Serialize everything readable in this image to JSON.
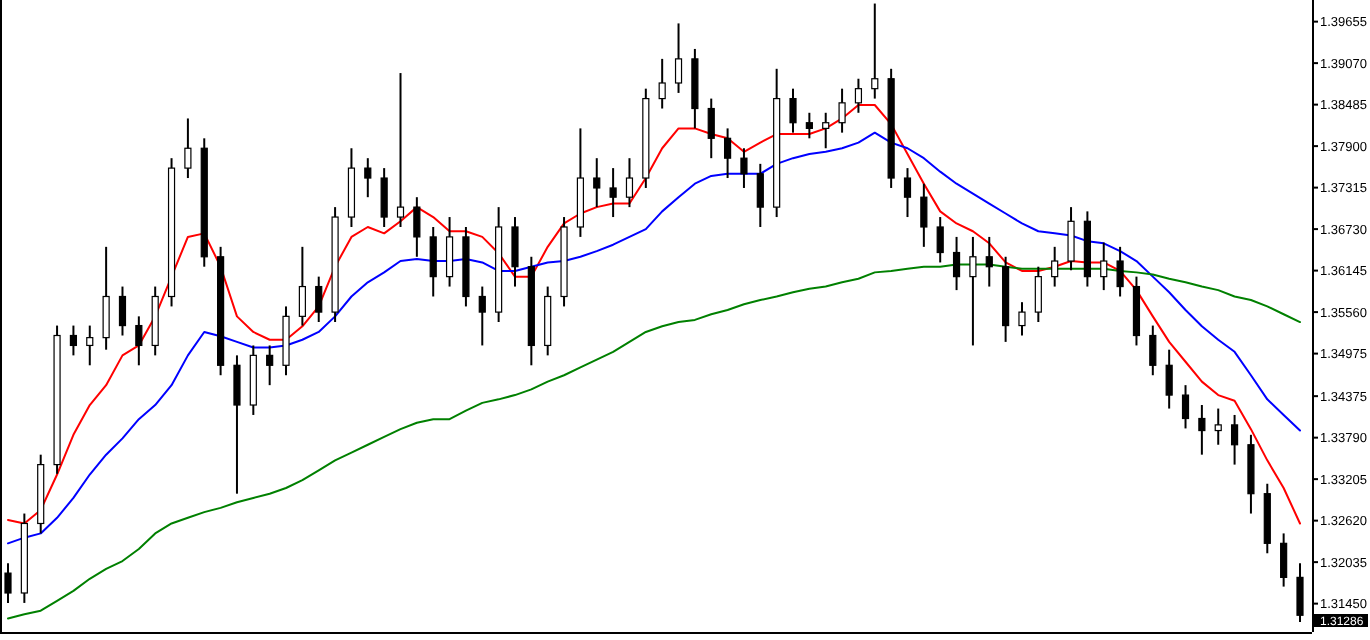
{
  "chart_data": {
    "type": "candlestick",
    "categories": [
      null,
      null,
      null,
      null,
      null,
      null,
      null,
      null,
      null,
      null,
      null,
      null,
      null,
      null,
      null,
      null,
      null,
      null,
      null,
      null,
      null,
      null,
      null,
      null,
      null,
      null,
      null,
      null,
      null,
      null,
      null,
      null,
      null,
      null,
      null,
      null,
      null,
      null,
      null,
      null,
      null,
      null,
      null,
      null,
      null,
      null,
      null,
      null,
      null,
      null,
      null,
      null,
      null,
      null,
      null,
      null,
      null,
      null,
      null,
      null,
      null,
      null,
      null,
      null,
      null,
      null,
      null,
      null,
      null,
      null,
      null,
      null,
      null,
      null,
      null,
      null,
      null,
      null,
      null,
      null
    ],
    "ohlc": [
      [
        1.3188,
        1.3202,
        1.3146,
        1.316
      ],
      [
        1.316,
        1.3272,
        1.3146,
        1.3258
      ],
      [
        1.3258,
        1.3355,
        1.3244,
        1.3341
      ],
      [
        1.3341,
        1.3537,
        1.3328,
        1.3523
      ],
      [
        1.3523,
        1.3537,
        1.3495,
        1.3509
      ],
      [
        1.3509,
        1.3537,
        1.3481,
        1.352
      ],
      [
        1.352,
        1.3648,
        1.3503,
        1.3578
      ],
      [
        1.3578,
        1.3592,
        1.3523,
        1.3537
      ],
      [
        1.3537,
        1.355,
        1.3481,
        1.3509
      ],
      [
        1.3509,
        1.3592,
        1.3495,
        1.3578
      ],
      [
        1.3578,
        1.3773,
        1.3564,
        1.3759
      ],
      [
        1.3759,
        1.3829,
        1.3745,
        1.3787
      ],
      [
        1.3787,
        1.3801,
        1.362,
        1.3634
      ],
      [
        1.3634,
        1.3648,
        1.3467,
        1.3481
      ],
      [
        1.3481,
        1.3495,
        1.33,
        1.3425
      ],
      [
        1.3425,
        1.3509,
        1.3411,
        1.3495
      ],
      [
        1.3495,
        1.3509,
        1.3453,
        1.3481
      ],
      [
        1.3481,
        1.3564,
        1.3467,
        1.355
      ],
      [
        1.355,
        1.3648,
        1.3537,
        1.3592
      ],
      [
        1.3592,
        1.3606,
        1.3542,
        1.3556
      ],
      [
        1.3556,
        1.3704,
        1.3542,
        1.369
      ],
      [
        1.369,
        1.3787,
        1.3676,
        1.3759
      ],
      [
        1.3759,
        1.3773,
        1.3718,
        1.3745
      ],
      [
        1.3745,
        1.3759,
        1.3676,
        1.369
      ],
      [
        1.369,
        1.3893,
        1.3676,
        1.3704
      ],
      [
        1.3704,
        1.3718,
        1.3634,
        1.3662
      ],
      [
        1.3662,
        1.3676,
        1.3578,
        1.3606
      ],
      [
        1.3606,
        1.369,
        1.3592,
        1.3662
      ],
      [
        1.3662,
        1.3676,
        1.3564,
        1.3578
      ],
      [
        1.3578,
        1.3592,
        1.3509,
        1.3556
      ],
      [
        1.3556,
        1.3704,
        1.3542,
        1.3676
      ],
      [
        1.3676,
        1.369,
        1.3592,
        1.362
      ],
      [
        1.362,
        1.3634,
        1.3481,
        1.3509
      ],
      [
        1.3509,
        1.3592,
        1.3495,
        1.3578
      ],
      [
        1.3578,
        1.369,
        1.3564,
        1.3676
      ],
      [
        1.3676,
        1.3815,
        1.3662,
        1.3745
      ],
      [
        1.3745,
        1.3773,
        1.3704,
        1.3731
      ],
      [
        1.3731,
        1.3759,
        1.369,
        1.3718
      ],
      [
        1.3718,
        1.3773,
        1.3704,
        1.3745
      ],
      [
        1.3745,
        1.3871,
        1.3731,
        1.3857
      ],
      [
        1.3857,
        1.3913,
        1.3843,
        1.3879
      ],
      [
        1.3879,
        1.3963,
        1.3865,
        1.3913
      ],
      [
        1.3913,
        1.3927,
        1.3815,
        1.3843
      ],
      [
        1.3843,
        1.3857,
        1.3773,
        1.3801
      ],
      [
        1.3801,
        1.3815,
        1.3745,
        1.3773
      ],
      [
        1.3773,
        1.3787,
        1.3731,
        1.3751
      ],
      [
        1.3751,
        1.3765,
        1.3676,
        1.3704
      ],
      [
        1.3704,
        1.3899,
        1.369,
        1.3857
      ],
      [
        1.3857,
        1.3871,
        1.3809,
        1.3823
      ],
      [
        1.3823,
        1.3837,
        1.3801,
        1.3815
      ],
      [
        1.3815,
        1.3837,
        1.3787,
        1.3823
      ],
      [
        1.3823,
        1.3871,
        1.3809,
        1.3851
      ],
      [
        1.3851,
        1.3885,
        1.3837,
        1.3871
      ],
      [
        1.3871,
        1.3991,
        1.3857,
        1.3885
      ],
      [
        1.3885,
        1.3899,
        1.3731,
        1.3745
      ],
      [
        1.3745,
        1.3759,
        1.369,
        1.3718
      ],
      [
        1.3718,
        1.3737,
        1.3648,
        1.3676
      ],
      [
        1.3676,
        1.369,
        1.3626,
        1.364
      ],
      [
        1.364,
        1.3662,
        1.3587,
        1.3606
      ],
      [
        1.3606,
        1.3662,
        1.3509,
        1.3634
      ],
      [
        1.3634,
        1.3662,
        1.3592,
        1.362
      ],
      [
        1.362,
        1.3634,
        1.3514,
        1.3537
      ],
      [
        1.3537,
        1.357,
        1.3523,
        1.3556
      ],
      [
        1.3556,
        1.362,
        1.3542,
        1.3606
      ],
      [
        1.3606,
        1.3648,
        1.3592,
        1.3628
      ],
      [
        1.3628,
        1.3704,
        1.3615,
        1.3684
      ],
      [
        1.3684,
        1.3698,
        1.3592,
        1.3606
      ],
      [
        1.3606,
        1.3654,
        1.3587,
        1.3628
      ],
      [
        1.3628,
        1.3648,
        1.3578,
        1.3592
      ],
      [
        1.3592,
        1.3606,
        1.3509,
        1.3523
      ],
      [
        1.3523,
        1.3537,
        1.3467,
        1.3481
      ],
      [
        1.3481,
        1.3503,
        1.342,
        1.3439
      ],
      [
        1.3439,
        1.3453,
        1.3392,
        1.3406
      ],
      [
        1.3406,
        1.3425,
        1.3355,
        1.3389
      ],
      [
        1.3389,
        1.342,
        1.3369,
        1.3397
      ],
      [
        1.3397,
        1.3411,
        1.3341,
        1.3369
      ],
      [
        1.3369,
        1.3383,
        1.3272,
        1.33
      ],
      [
        1.33,
        1.3314,
        1.3216,
        1.323
      ],
      [
        1.323,
        1.3244,
        1.3169,
        1.3182
      ],
      [
        1.3182,
        1.3202,
        1.3119,
        1.31286
      ]
    ],
    "series": [
      {
        "type": "line",
        "color": "#ff0000",
        "values": [
          1.3263,
          1.3258,
          1.3277,
          1.3327,
          1.3383,
          1.3425,
          1.3453,
          1.3495,
          1.3509,
          1.355,
          1.3606,
          1.3662,
          1.3667,
          1.362,
          1.355,
          1.3528,
          1.3517,
          1.3517,
          1.3536,
          1.3564,
          1.362,
          1.3662,
          1.3676,
          1.3667,
          1.3684,
          1.3704,
          1.369,
          1.367,
          1.367,
          1.3662,
          1.3639,
          1.3606,
          1.3606,
          1.3648,
          1.3681,
          1.3695,
          1.3704,
          1.3709,
          1.3709,
          1.3745,
          1.3787,
          1.3815,
          1.3815,
          1.3807,
          1.3801,
          1.3782,
          1.3795,
          1.3807,
          1.3807,
          1.3807,
          1.3815,
          1.3829,
          1.3848,
          1.3848,
          1.3821,
          1.3779,
          1.3737,
          1.3698,
          1.3681,
          1.367,
          1.3653,
          1.3626,
          1.3614,
          1.3614,
          1.362,
          1.3628,
          1.3626,
          1.3626,
          1.3614,
          1.3587,
          1.355,
          1.3514,
          1.3486,
          1.3458,
          1.3439,
          1.3431,
          1.3391,
          1.3347,
          1.3308,
          1.3258
        ]
      },
      {
        "type": "line",
        "color": "#0000ff",
        "values": [
          1.323,
          1.3238,
          1.3244,
          1.3266,
          1.3294,
          1.3327,
          1.3355,
          1.3378,
          1.3405,
          1.3425,
          1.3453,
          1.3495,
          1.3528,
          1.3522,
          1.3514,
          1.3506,
          1.3506,
          1.3509,
          1.3517,
          1.3528,
          1.355,
          1.3578,
          1.3598,
          1.3612,
          1.3628,
          1.3631,
          1.3628,
          1.3628,
          1.3631,
          1.3626,
          1.3614,
          1.3614,
          1.362,
          1.3626,
          1.3628,
          1.3634,
          1.3642,
          1.3651,
          1.3662,
          1.3673,
          1.3698,
          1.3718,
          1.3737,
          1.3748,
          1.3751,
          1.3751,
          1.3751,
          1.3765,
          1.3773,
          1.3779,
          1.3782,
          1.3787,
          1.3795,
          1.3809,
          1.3795,
          1.3787,
          1.3773,
          1.3754,
          1.3737,
          1.3723,
          1.3709,
          1.3695,
          1.3681,
          1.367,
          1.3667,
          1.3664,
          1.3656,
          1.3653,
          1.3642,
          1.3628,
          1.3606,
          1.3584,
          1.3559,
          1.3536,
          1.3517,
          1.35,
          1.3467,
          1.3433,
          1.3411,
          1.3389
        ]
      },
      {
        "type": "line",
        "color": "#008000",
        "values": [
          1.3124,
          1.313,
          1.3135,
          1.3149,
          1.3163,
          1.318,
          1.3194,
          1.3205,
          1.3222,
          1.3244,
          1.3258,
          1.3266,
          1.3274,
          1.328,
          1.3288,
          1.3294,
          1.33,
          1.3308,
          1.3319,
          1.3333,
          1.3347,
          1.3358,
          1.3369,
          1.338,
          1.3391,
          1.34,
          1.3405,
          1.3405,
          1.3417,
          1.3428,
          1.3433,
          1.3439,
          1.3447,
          1.3458,
          1.3467,
          1.3478,
          1.3489,
          1.35,
          1.3514,
          1.3528,
          1.3536,
          1.3542,
          1.3545,
          1.3553,
          1.3559,
          1.3567,
          1.3573,
          1.3578,
          1.3584,
          1.3589,
          1.3592,
          1.3598,
          1.3603,
          1.3612,
          1.3614,
          1.3617,
          1.362,
          1.362,
          1.3623,
          1.3623,
          1.3623,
          1.362,
          1.3617,
          1.3617,
          1.3617,
          1.3617,
          1.3617,
          1.3617,
          1.3614,
          1.3612,
          1.3609,
          1.3603,
          1.3598,
          1.3592,
          1.3587,
          1.3578,
          1.3573,
          1.3564,
          1.3553,
          1.3542
        ]
      }
    ],
    "ylim": [
      1.3105,
      1.3996
    ],
    "yticks": [
      1.39655,
      {
        "value": 1.3907,
        "label": "1.39070"
      },
      1.38485,
      {
        "value": 1.379,
        "label": "1.37900"
      },
      1.37315,
      {
        "value": 1.3673,
        "label": "1.36730"
      },
      1.36145,
      {
        "value": 1.3556,
        "label": "1.35560"
      },
      1.34975,
      1.34375,
      {
        "value": 1.3379,
        "label": "1.33790"
      },
      1.33205,
      {
        "value": 1.3262,
        "label": "1.32620"
      },
      1.32035,
      {
        "value": 1.3145,
        "label": "1.31450"
      }
    ],
    "annotations": [
      "1.31286"
    ]
  }
}
